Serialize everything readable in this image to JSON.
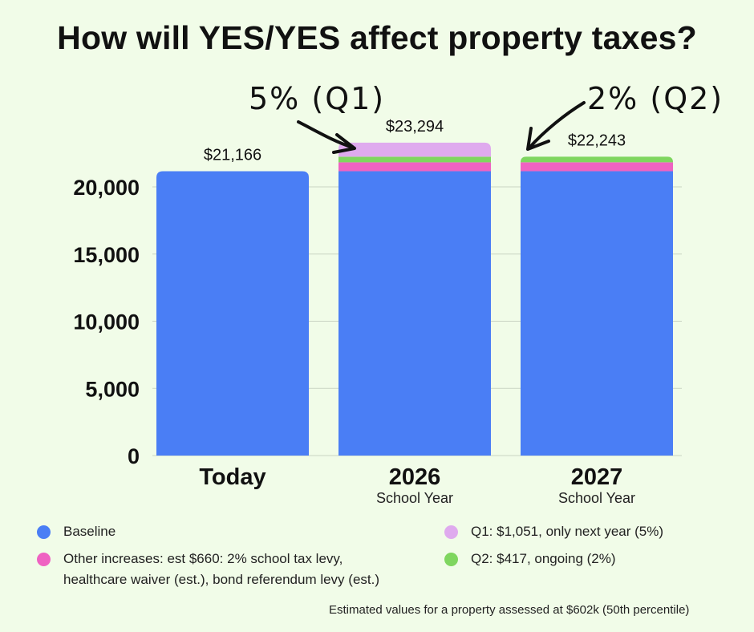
{
  "title": "How will YES/YES affect property taxes?",
  "chart_data": {
    "type": "bar",
    "stacked": true,
    "categories": [
      {
        "label": "Today",
        "sublabel": ""
      },
      {
        "label": "2026",
        "sublabel": "School Year"
      },
      {
        "label": "2027",
        "sublabel": "School Year"
      }
    ],
    "series": [
      {
        "name": "Baseline",
        "color": "#4a7ef5",
        "values": [
          21166,
          21166,
          21166
        ]
      },
      {
        "name": "Other increases",
        "color": "#ef62c2",
        "values": [
          0,
          660,
          660
        ]
      },
      {
        "name": "Q2",
        "color": "#7fd65f",
        "values": [
          0,
          417,
          417
        ]
      },
      {
        "name": "Q1",
        "color": "#dfaaee",
        "values": [
          0,
          1051,
          0
        ]
      }
    ],
    "totals": [
      21166,
      23294,
      22243
    ],
    "total_labels": [
      "$21,166",
      "$23,294",
      "$22,243"
    ],
    "ylim": [
      0,
      25000
    ],
    "yticks": [
      0,
      5000,
      10000,
      15000,
      20000
    ],
    "ytick_labels": [
      "0",
      "5,000",
      "10,000",
      "15,000",
      "20,000"
    ],
    "grid": true,
    "annotations": [
      {
        "text": "5% (Q1)",
        "target_category": "2026"
      },
      {
        "text": "2% (Q2)",
        "target_category": "2027"
      }
    ]
  },
  "legend": [
    {
      "label": "Baseline",
      "color": "#4a7ef5"
    },
    {
      "label": "Other increases: est $660: 2% school tax levy, healthcare waiver (est.), bond referendum levy (est.)",
      "color": "#ef62c2"
    },
    {
      "label": "Q1: $1,051, only next year (5%)",
      "color": "#dfaaee"
    },
    {
      "label": "Q2: $417, ongoing (2%)",
      "color": "#7fd65f"
    }
  ],
  "footnote": "Estimated values for a property assessed at $602k (50th percentile)"
}
